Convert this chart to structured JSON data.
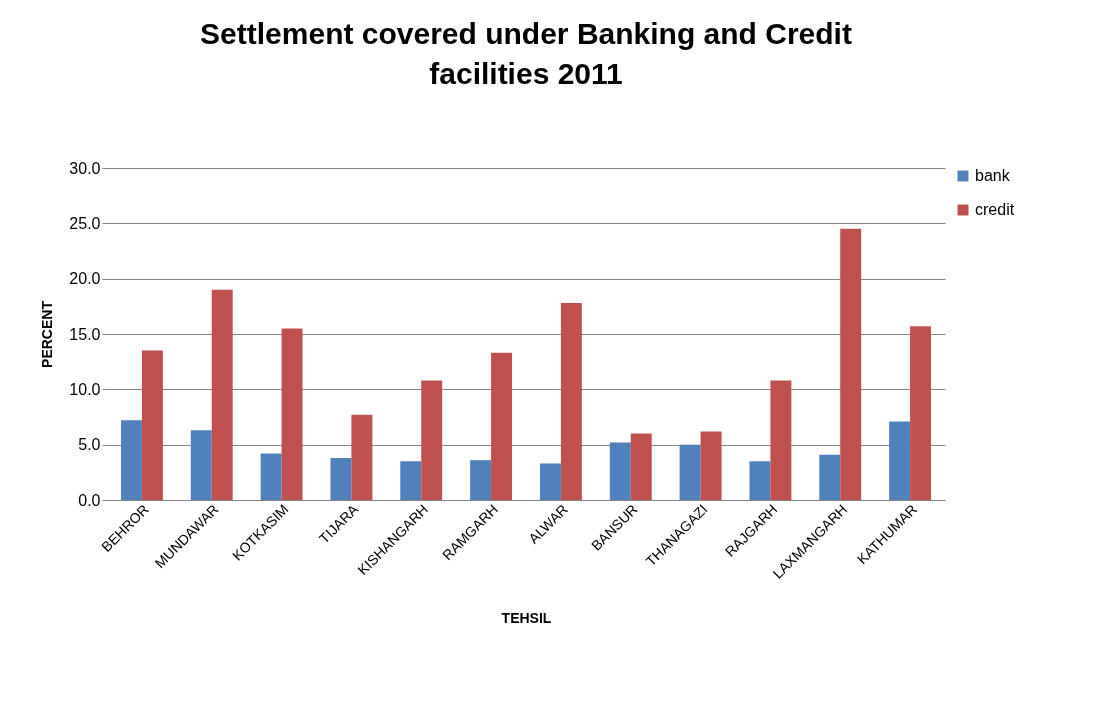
{
  "chart_data": {
    "type": "bar",
    "title": "Settlement covered under Banking and Credit facilities 2011",
    "xlabel": "TEHSIL",
    "ylabel": "PERCENT",
    "categories": [
      "BEHROR",
      "MUNDAWAR",
      "KOTKASIM",
      "TIJARA",
      "KISHANGARH",
      "RAMGARH",
      "ALWAR",
      "BANSUR",
      "THANAGAZI",
      "RAJGARH",
      "LAXMANGARH",
      "KATHUMAR"
    ],
    "series": [
      {
        "name": "bank",
        "color": "#4f81bd",
        "values": [
          7.2,
          6.3,
          4.2,
          3.8,
          3.5,
          3.6,
          3.3,
          5.2,
          5.0,
          3.5,
          4.1,
          7.1
        ]
      },
      {
        "name": "credit",
        "color": "#c0504d",
        "values": [
          13.5,
          19.0,
          15.5,
          7.7,
          10.8,
          13.3,
          17.8,
          6.0,
          6.2,
          10.8,
          24.5,
          15.7
        ]
      }
    ],
    "ylim": [
      0,
      30
    ],
    "yticks": [
      {
        "value": 0,
        "label": "0.0"
      },
      {
        "value": 5,
        "label": "5.0"
      },
      {
        "value": 10,
        "label": "10.0"
      },
      {
        "value": 15,
        "label": "15.0"
      },
      {
        "value": 20,
        "label": "20.0"
      },
      {
        "value": 25,
        "label": "25.0"
      },
      {
        "value": 30,
        "label": "30.0"
      }
    ],
    "grid": "y",
    "legend": "right"
  }
}
